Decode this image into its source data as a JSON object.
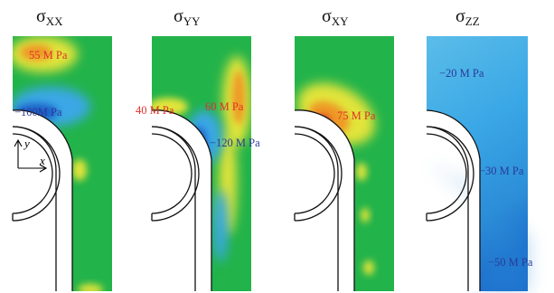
{
  "colors": {
    "green": "#22b34a",
    "yellow": "#e2e43a",
    "orange": "#ee9a26",
    "red": "#d8322a",
    "light_blue": "#3aa7e6",
    "blue": "#1e63c8",
    "dark_blue": "#1b2aa8",
    "label_red": "#e03028",
    "label_blue": "#2a3a9a"
  },
  "panels": [
    {
      "id": "sxx",
      "symbol": "σ",
      "subscript": "XX",
      "labels": [
        {
          "text": "55 M Pa",
          "color": "label_red"
        },
        {
          "text": "−100M Pa",
          "color": "label_blue"
        }
      ]
    },
    {
      "id": "syy",
      "symbol": "σ",
      "subscript": "YY",
      "labels": [
        {
          "text": "40 M Pa",
          "color": "label_red"
        },
        {
          "text": "60 M Pa",
          "color": "label_red"
        },
        {
          "text": "−120 M Pa",
          "color": "label_blue"
        }
      ]
    },
    {
      "id": "sxy",
      "symbol": "σ",
      "subscript": "XY",
      "labels": [
        {
          "text": "75 M Pa",
          "color": "label_red"
        }
      ]
    },
    {
      "id": "szz",
      "symbol": "σ",
      "subscript": "ZZ",
      "labels": [
        {
          "text": "−20 M Pa",
          "color": "label_blue"
        },
        {
          "text": "−30 M Pa",
          "color": "label_blue"
        },
        {
          "text": "−50 M Pa",
          "color": "label_blue"
        }
      ]
    }
  ],
  "axes": {
    "x_label": "x",
    "y_label": "y"
  }
}
